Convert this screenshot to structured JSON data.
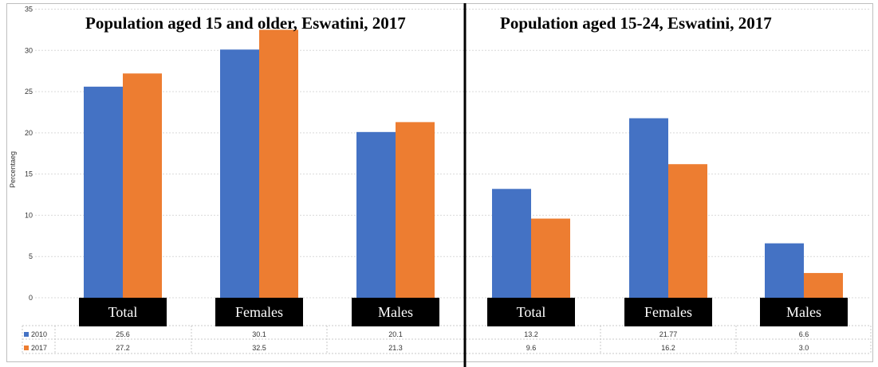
{
  "colors": {
    "series_2010": "#4472c4",
    "series_2017": "#ed7d31",
    "grid": "#d9d9d9",
    "divider": "#000000"
  },
  "chart_data": [
    {
      "type": "bar",
      "title": "Population aged 15 and older, Eswatini, 2017",
      "ylabel": "Percentaeg",
      "ylim": [
        0,
        35
      ],
      "yticks": [
        "0",
        "5",
        "10",
        "15",
        "20",
        "25",
        "30",
        "35"
      ],
      "categories": [
        "Total",
        "Females",
        "Males"
      ],
      "series": [
        {
          "name": "2010",
          "values": [
            25.6,
            30.1,
            20.1
          ],
          "labels": [
            "25.6",
            "30.1",
            "20.1"
          ]
        },
        {
          "name": "2017",
          "values": [
            27.2,
            32.5,
            21.3
          ],
          "labels": [
            "27.2",
            "32.5",
            "21.3"
          ]
        }
      ],
      "grid": true,
      "legend": "data-table"
    },
    {
      "type": "bar",
      "title": "Population aged 15-24, Eswatini, 2017",
      "ylim": [
        0,
        35
      ],
      "categories": [
        "Total",
        "Females",
        "Males"
      ],
      "series": [
        {
          "name": "2010",
          "values": [
            13.2,
            21.77,
            6.6
          ],
          "labels": [
            "13.2",
            "21.77",
            "6.6"
          ]
        },
        {
          "name": "2017",
          "values": [
            9.6,
            16.2,
            3.0
          ],
          "labels": [
            "9.6",
            "16.2",
            "3.0"
          ]
        }
      ],
      "grid": true,
      "legend": "data-table"
    }
  ]
}
